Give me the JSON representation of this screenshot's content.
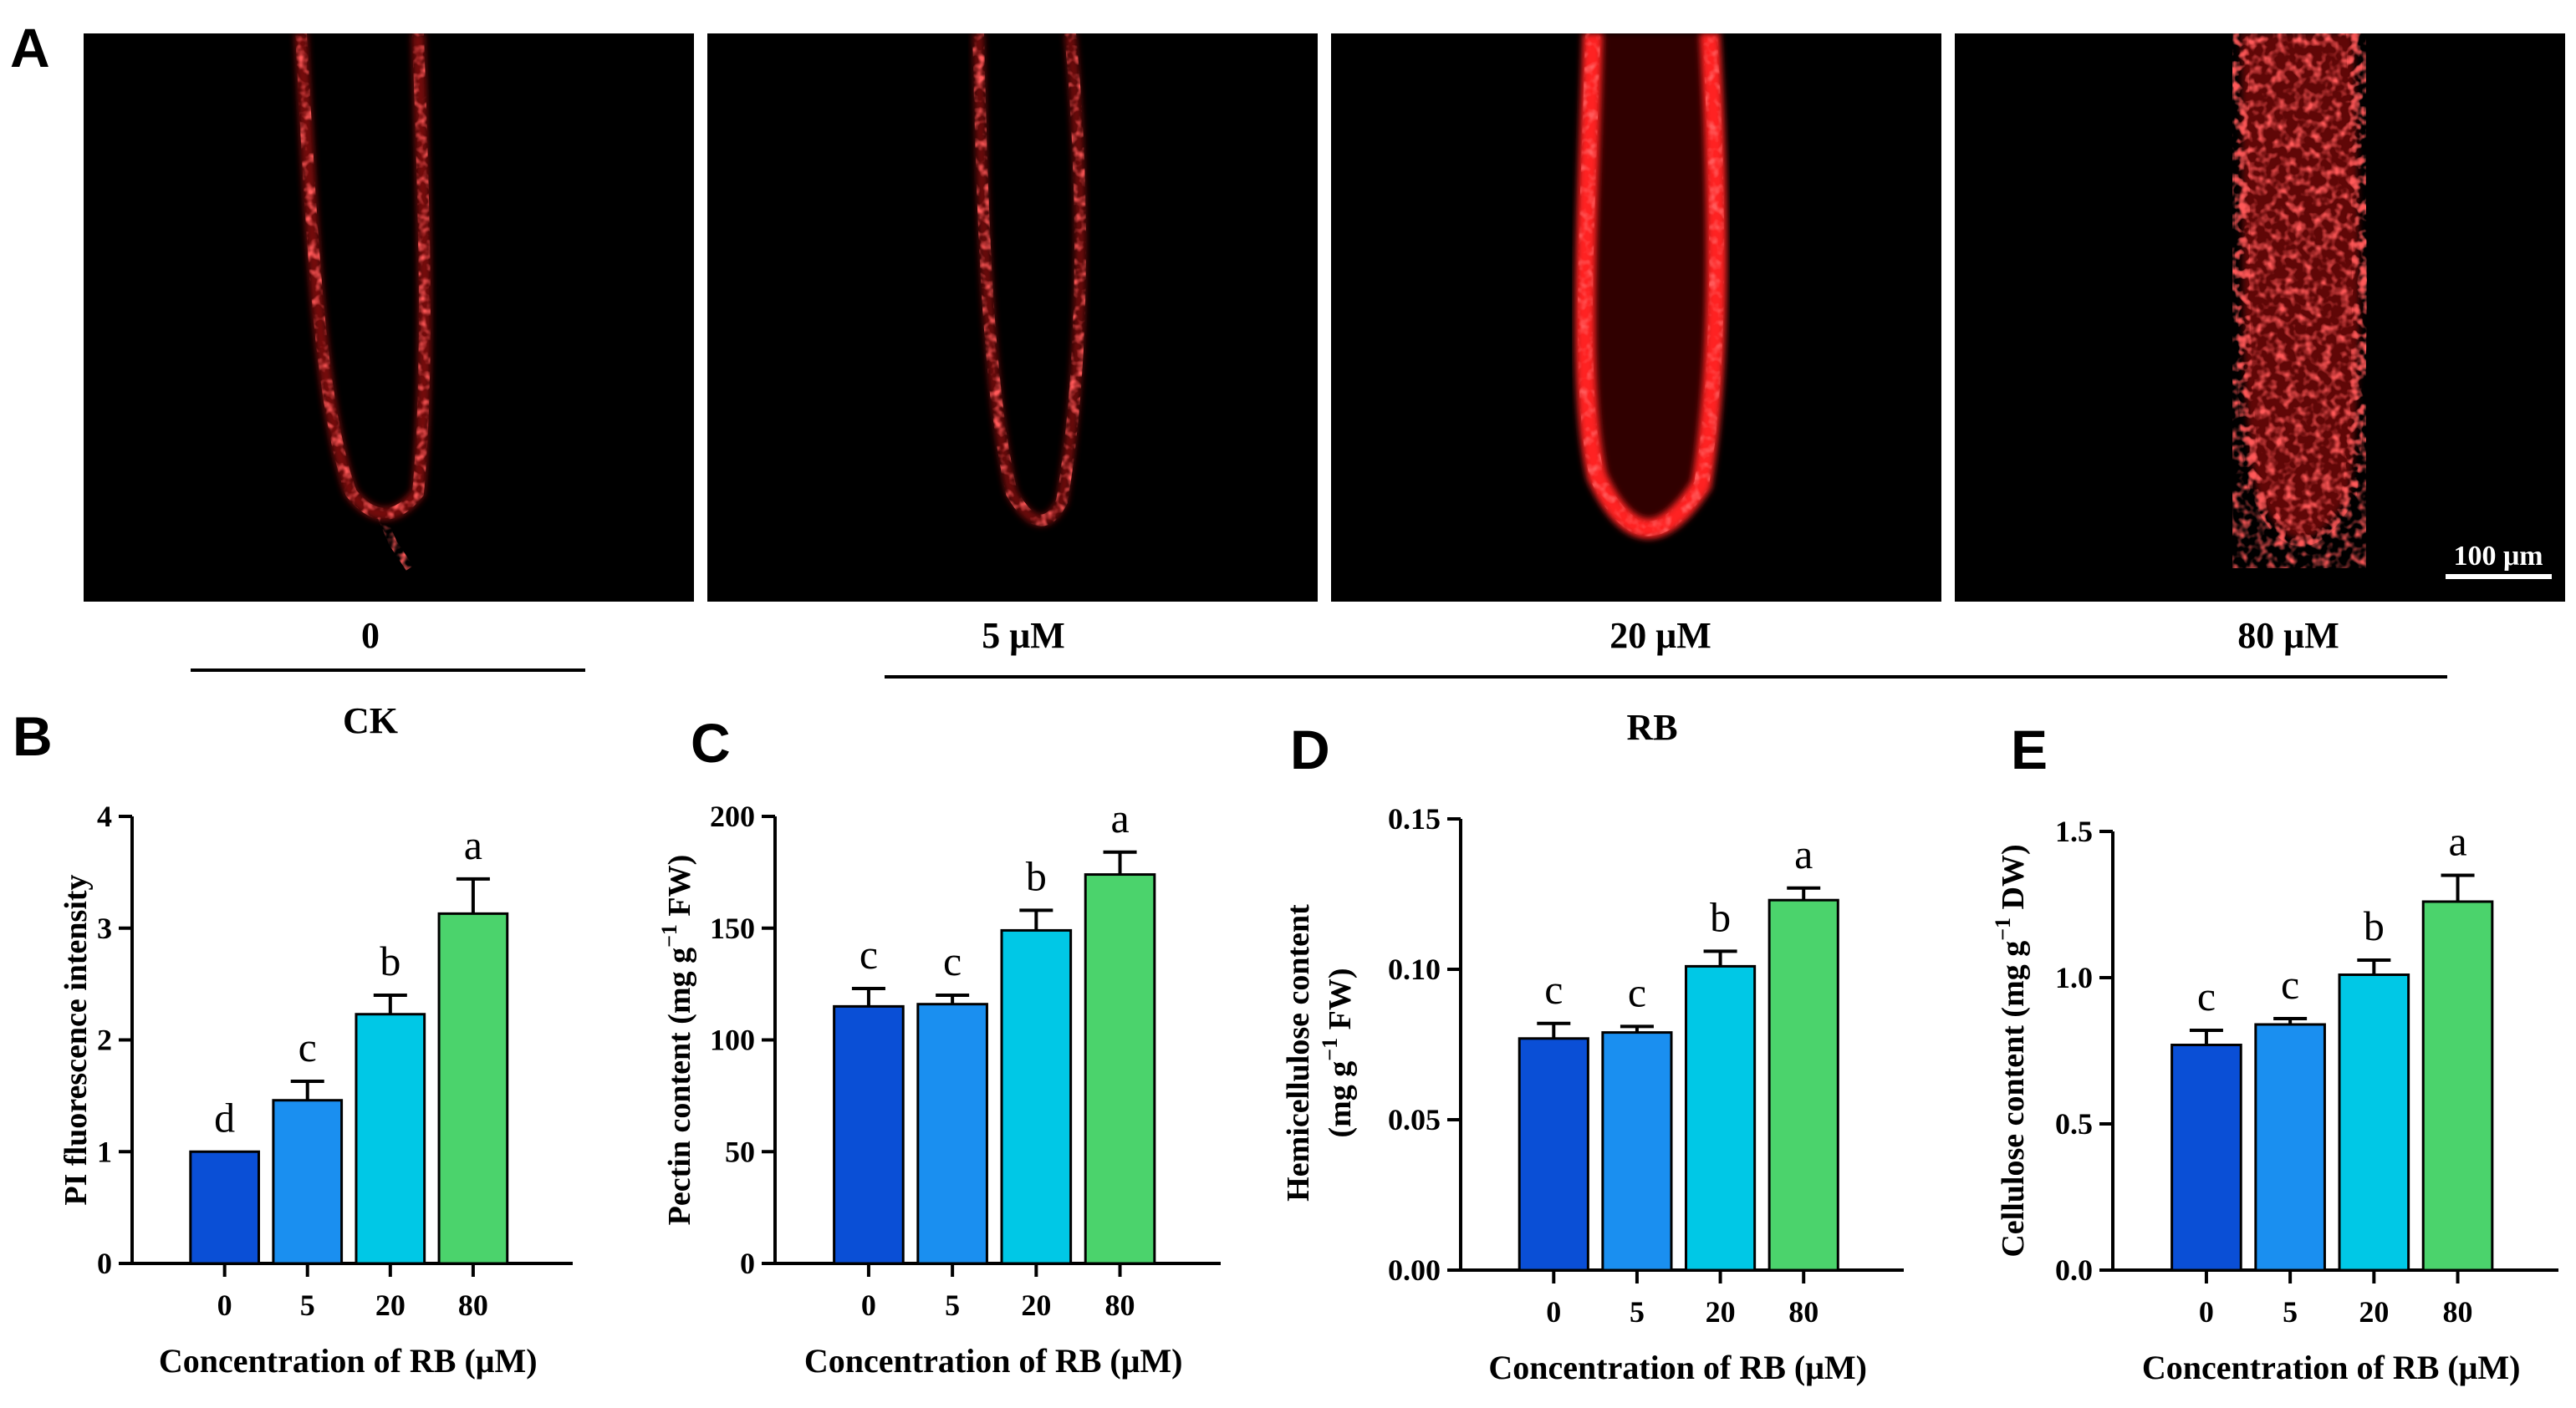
{
  "panels": {
    "a": "A",
    "b": "B",
    "c": "C",
    "d": "D",
    "e": "E"
  },
  "micrographs": {
    "conditions": [
      "0",
      "5 μM",
      "20 μM",
      "80 μM"
    ],
    "scale_bar": "100 μm",
    "groups": {
      "ck": "CK",
      "rb": "RB"
    },
    "stain_color": "#ff1a1a",
    "background": "#000000"
  },
  "colors": [
    "#0a4fd6",
    "#1a8ff0",
    "#00c8e6",
    "#4bd36c"
  ],
  "chart_data": [
    {
      "type": "bar",
      "panel": "B",
      "categories": [
        "0",
        "5",
        "20",
        "80"
      ],
      "values": [
        1.0,
        1.46,
        2.23,
        3.13
      ],
      "errors": [
        0.0,
        0.17,
        0.17,
        0.31
      ],
      "letters": [
        "d",
        "c",
        "b",
        "a"
      ],
      "xlabel": "Concentration of RB (μM)",
      "ylabel": "PI fluorescence intensity",
      "ylim": [
        0,
        4
      ],
      "yticks": [
        "0",
        "1",
        "2",
        "3",
        "4"
      ],
      "ytick_values": [
        0,
        1,
        2,
        3,
        4
      ]
    },
    {
      "type": "bar",
      "panel": "C",
      "categories": [
        "0",
        "5",
        "20",
        "80"
      ],
      "values": [
        115,
        116,
        149,
        174
      ],
      "errors": [
        8,
        4,
        9,
        10
      ],
      "letters": [
        "c",
        "c",
        "b",
        "a"
      ],
      "xlabel": "Concentration of RB (μM)",
      "ylabel": "Pectin content (mg g",
      "ylabel_sup": "−1",
      "ylabel_end": " FW)",
      "ylim": [
        0,
        200
      ],
      "yticks": [
        "0",
        "50",
        "100",
        "150",
        "200"
      ],
      "ytick_values": [
        0,
        50,
        100,
        150,
        200
      ]
    },
    {
      "type": "bar",
      "panel": "D",
      "categories": [
        "0",
        "5",
        "20",
        "80"
      ],
      "values": [
        0.077,
        0.079,
        0.101,
        0.123
      ],
      "errors": [
        0.005,
        0.002,
        0.005,
        0.004
      ],
      "letters": [
        "c",
        "c",
        "b",
        "a"
      ],
      "xlabel": "Concentration of RB (μM)",
      "ylabel": "Hemicellulose content",
      "ylabel2": "(mg g",
      "ylabel2_sup": "−1",
      "ylabel2_end": " FW)",
      "ylim": [
        0,
        0.15
      ],
      "yticks": [
        "0.00",
        "0.05",
        "0.10",
        "0.15"
      ],
      "ytick_values": [
        0,
        0.05,
        0.1,
        0.15
      ]
    },
    {
      "type": "bar",
      "panel": "E",
      "categories": [
        "0",
        "5",
        "20",
        "80"
      ],
      "values": [
        0.77,
        0.84,
        1.01,
        1.26
      ],
      "errors": [
        0.05,
        0.02,
        0.05,
        0.09
      ],
      "letters": [
        "c",
        "c",
        "b",
        "a"
      ],
      "xlabel": "Concentration of RB (μM)",
      "ylabel": "Cellulose content (mg g",
      "ylabel_sup": "−1",
      "ylabel_end": " DW)",
      "ylim": [
        0,
        1.5
      ],
      "yticks": [
        "0.0",
        "0.5",
        "1.0",
        "1.5"
      ],
      "ytick_values": [
        0,
        0.5,
        1.0,
        1.5
      ]
    }
  ]
}
